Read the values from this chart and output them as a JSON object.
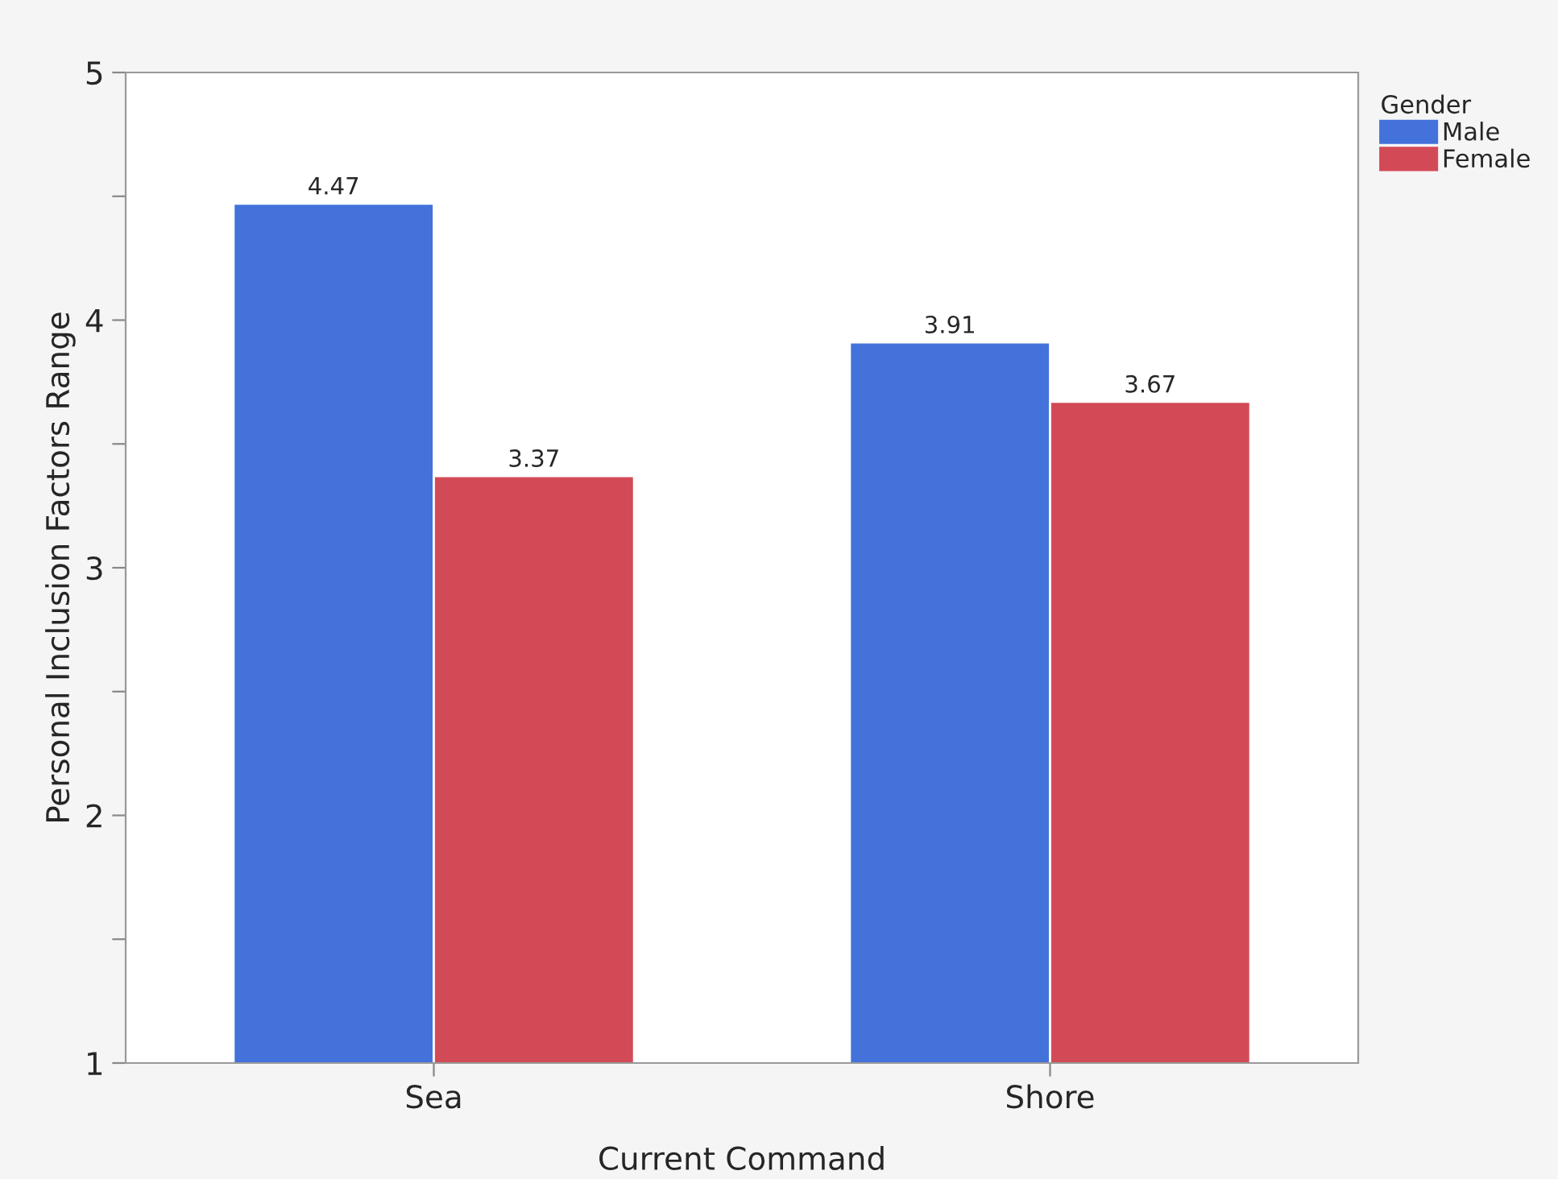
{
  "chart_data": {
    "type": "bar",
    "xlabel": "Current Command",
    "ylabel": "Personal Inclusion Factors Range",
    "legend_title": "Gender",
    "categories": [
      "Sea",
      "Shore"
    ],
    "series": [
      {
        "name": "Male",
        "color": "#4472db",
        "values": [
          4.47,
          3.91
        ]
      },
      {
        "name": "Female",
        "color": "#d34a57",
        "values": [
          3.37,
          3.67
        ]
      }
    ],
    "ylim": [
      1,
      5
    ],
    "yticks": [
      1,
      {
        "value": 1.5,
        "label": null
      },
      2,
      {
        "value": 2.5,
        "label": null
      },
      3,
      {
        "value": 3.5,
        "label": null
      },
      4,
      {
        "value": 4.5,
        "label": null
      },
      5
    ],
    "data_labels": true,
    "legend": "top right",
    "grid": false
  }
}
